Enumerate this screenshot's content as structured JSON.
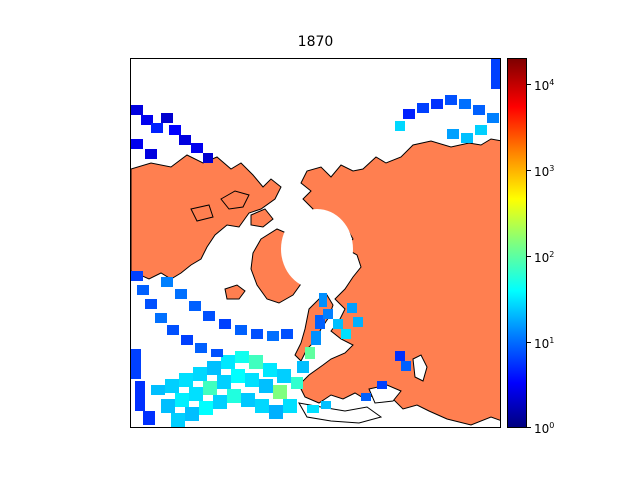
{
  "title": "1870",
  "colorbar": {
    "scale": "log",
    "range": [
      1,
      20000
    ],
    "ticks": [
      {
        "base": "10",
        "exp": "0"
      },
      {
        "base": "10",
        "exp": "1"
      },
      {
        "base": "10",
        "exp": "2"
      },
      {
        "base": "10",
        "exp": "3"
      },
      {
        "base": "10",
        "exp": "4"
      }
    ],
    "colormap": "jet"
  },
  "map": {
    "projection": "north-polar-stereographic",
    "land_color": "#ff7f50",
    "ocean_color": "#ffffff",
    "coastline_color": "#000000"
  }
}
